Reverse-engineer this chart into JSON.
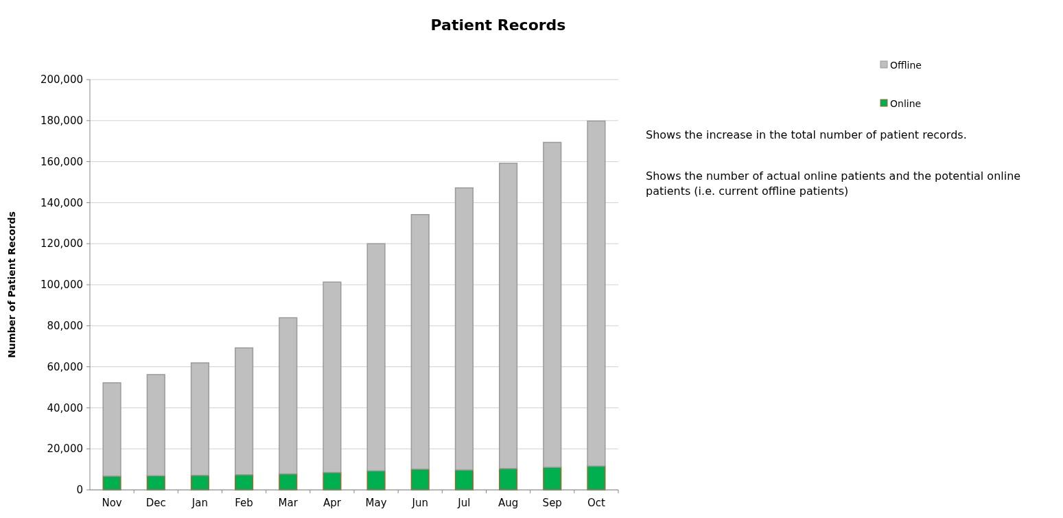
{
  "chart_data": {
    "type": "bar",
    "title": "Patient Records",
    "ylabel": "Number of Patient Records",
    "categories": [
      "Nov",
      "Dec",
      "Jan",
      "Feb",
      "Mar",
      "Apr",
      "May",
      "Jun",
      "Jul",
      "Aug",
      "Sep",
      "Oct"
    ],
    "stacked": true,
    "series": [
      {
        "name": "Online",
        "color": "#00b050",
        "values": [
          6700,
          6900,
          7100,
          7400,
          7800,
          8500,
          9300,
          10100,
          9700,
          10400,
          11000,
          11600
        ]
      },
      {
        "name": "Offline",
        "color": "#bfbfbf",
        "values": [
          45500,
          49300,
          54800,
          61800,
          76100,
          92800,
          110700,
          124100,
          137500,
          148800,
          158400,
          168200
        ]
      }
    ],
    "ylim": [
      0,
      200000
    ],
    "yticks": [
      {
        "value": 0,
        "label": "0"
      },
      {
        "value": 20000,
        "label": "20,000"
      },
      {
        "value": 40000,
        "label": "40,000"
      },
      {
        "value": 60000,
        "label": "60,000"
      },
      {
        "value": 80000,
        "label": "80,000"
      },
      {
        "value": 100000,
        "label": "100,000"
      },
      {
        "value": 120000,
        "label": "120,000"
      },
      {
        "value": 140000,
        "label": "140,000"
      },
      {
        "value": 160000,
        "label": "160,000"
      },
      {
        "value": 180000,
        "label": "180,000"
      },
      {
        "value": 200000,
        "label": "200,000"
      }
    ],
    "grid": "y",
    "legend": "top right",
    "annotations": [
      "Shows the increase in the total number of patient records.",
      "Shows the number of actual online patients and the potential online patients (i.e. current offline patients)"
    ]
  }
}
